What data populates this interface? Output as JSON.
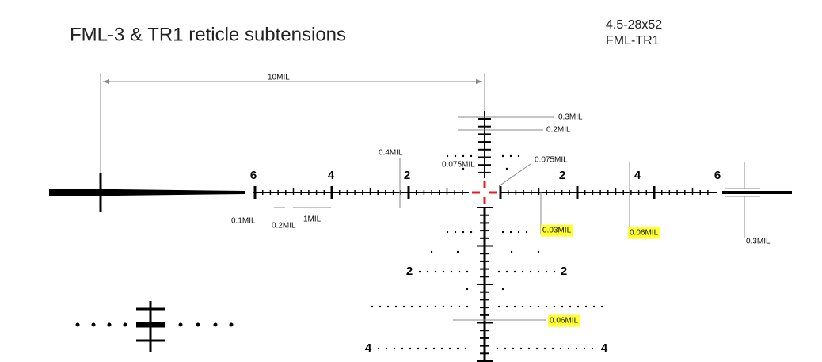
{
  "header": {
    "title": "FML-3 & TR1 reticle subtensions",
    "model": "4.5-28x52",
    "reticle": "FML-TR1"
  },
  "dimension_labels": [
    "10MIL",
    "0.3MIL",
    "0.2MIL",
    "0.4MIL",
    "0.075MIL",
    "0.075MIL",
    "0.1MIL",
    "0.2MIL",
    "1MIL",
    "0.3MIL"
  ],
  "highlighted_labels": [
    "0.03MIL",
    "0.06MIL",
    "0.06MIL"
  ],
  "scale_numbers": [
    "6",
    "4",
    "2",
    "2",
    "4",
    "6",
    "2",
    "2",
    "4",
    "4"
  ]
}
